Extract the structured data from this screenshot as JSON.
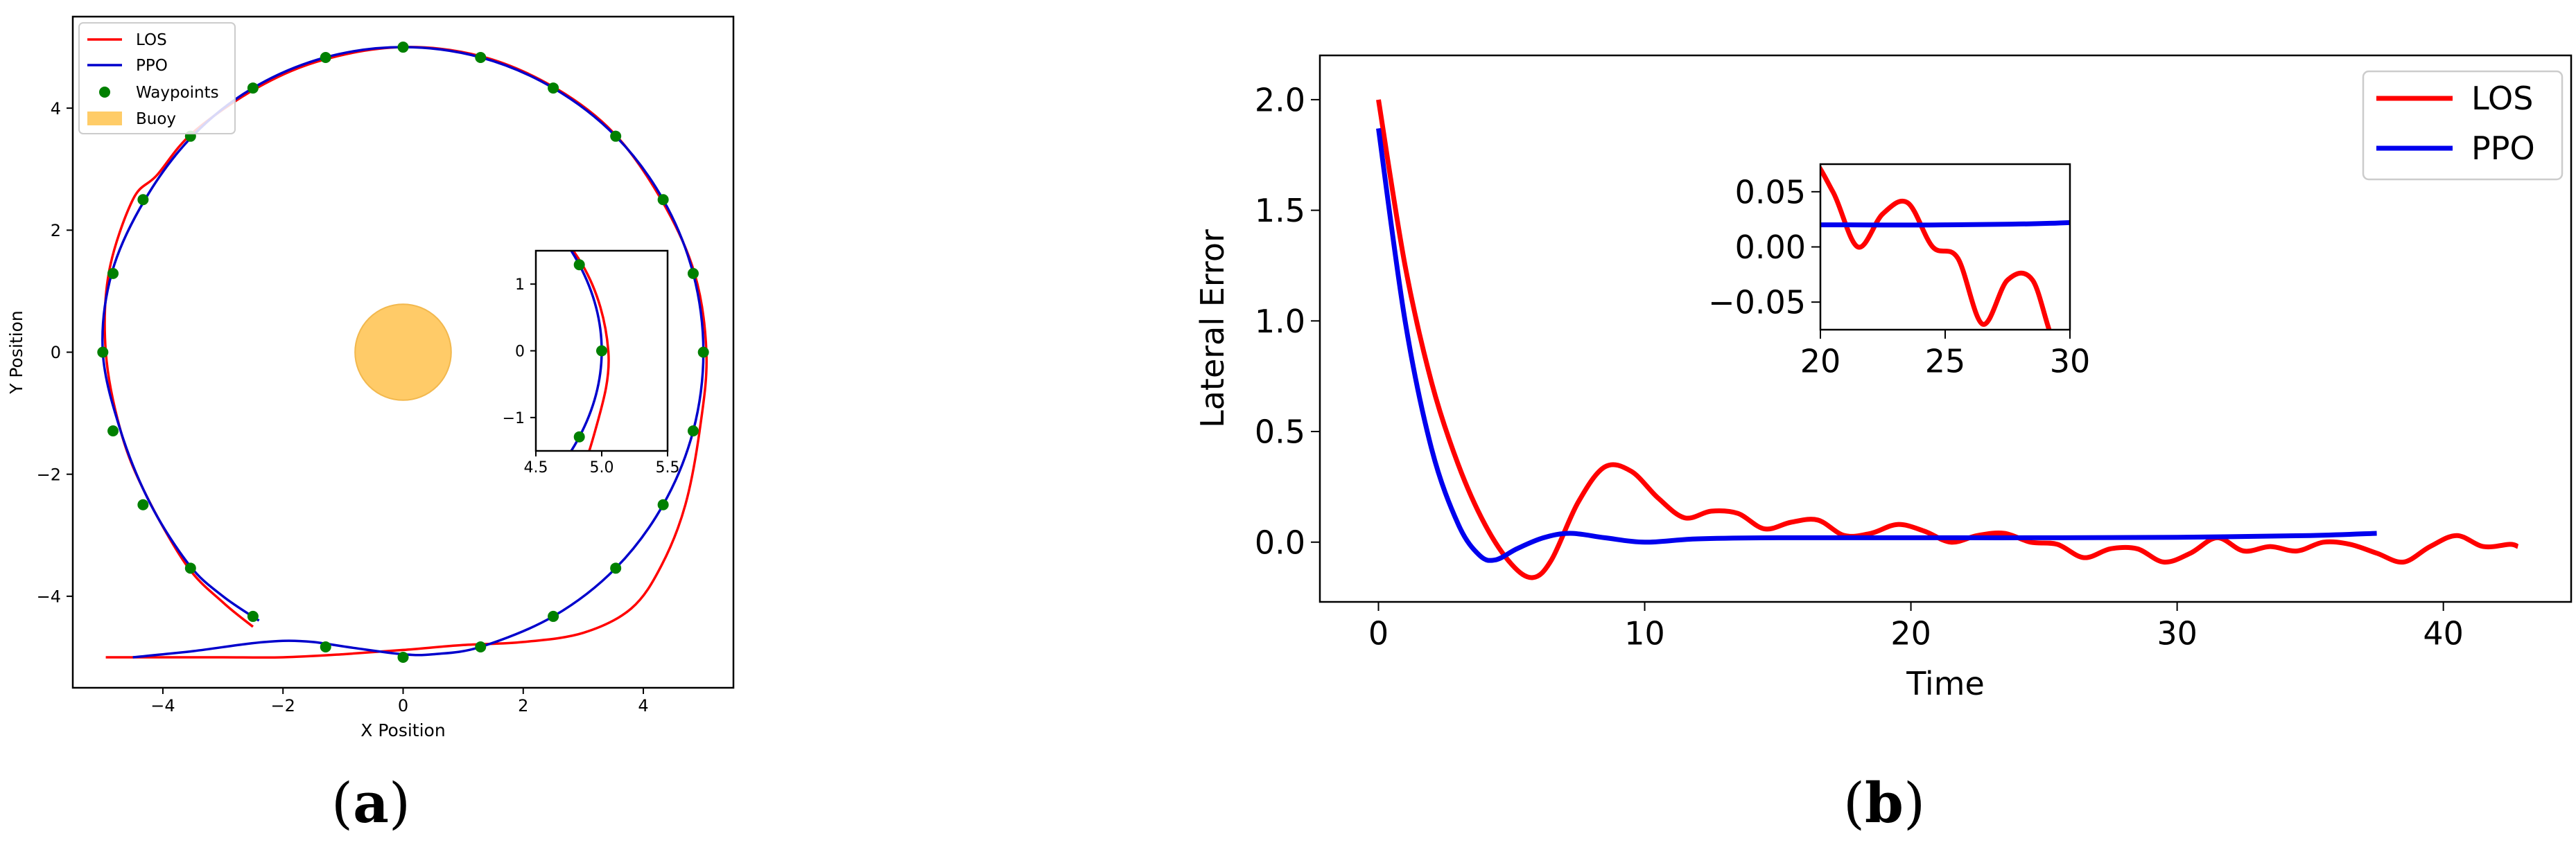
{
  "chart_data": [
    {
      "type": "scatter",
      "panel_label": "a",
      "title": "",
      "xlabel": "X Position",
      "ylabel": "Y Position",
      "xlim": [
        -5.5,
        5.5
      ],
      "ylim": [
        -5.5,
        5.5
      ],
      "xticks": [
        -4,
        -2,
        0,
        2,
        4
      ],
      "yticks": [
        -4,
        -2,
        0,
        2,
        4
      ],
      "grid": false,
      "legend": {
        "location": "upper-left",
        "entries": [
          "LOS",
          "PPO",
          "Waypoints",
          "Buoy"
        ]
      },
      "colors": {
        "LOS": "#ff0000",
        "PPO": "#0000cc",
        "Waypoints": "#008000",
        "Buoy": "#ffc658"
      },
      "waypoints": {
        "name": "Waypoints",
        "x": [
          0,
          1.29,
          2.5,
          3.54,
          4.33,
          4.83,
          5.0,
          4.83,
          4.33,
          3.54,
          2.5,
          1.29,
          0,
          -1.29,
          -2.5,
          -3.54,
          -4.33,
          -4.83,
          -5.0,
          -4.83,
          -4.33,
          -3.54,
          -2.5,
          -1.29
        ],
        "y": [
          5.0,
          4.83,
          4.33,
          3.54,
          2.5,
          1.29,
          0,
          -1.29,
          -2.5,
          -3.54,
          -4.33,
          -4.83,
          -5.0,
          -4.83,
          -4.33,
          -3.54,
          -2.5,
          -1.29,
          0,
          1.29,
          2.5,
          3.54,
          4.33,
          4.83
        ]
      },
      "buoy": {
        "name": "Buoy",
        "center": [
          0,
          0
        ],
        "radius": 0.8
      },
      "series": [
        {
          "name": "LOS",
          "x": [
            -2.5,
            -3.0,
            -3.6,
            -4.3,
            -4.7,
            -4.95,
            -4.9,
            -4.5,
            -4.1,
            -3.5,
            -2.4,
            -1.3,
            0,
            1.3,
            2.5,
            3.5,
            4.3,
            4.85,
            5.05,
            4.95,
            4.7,
            4.3,
            3.8,
            3.0,
            2.0,
            1.0,
            0,
            -1.0,
            -2.0,
            -3.0,
            -4.0,
            -4.95
          ],
          "y": [
            -4.5,
            -4.1,
            -3.5,
            -2.3,
            -1.3,
            0,
            1.3,
            2.5,
            2.9,
            3.6,
            4.35,
            4.8,
            5.0,
            4.85,
            4.35,
            3.6,
            2.5,
            1.3,
            0,
            -1.2,
            -2.5,
            -3.5,
            -4.2,
            -4.6,
            -4.75,
            -4.8,
            -4.88,
            -4.95,
            -5.0,
            -5.0,
            -5.0,
            -5.0
          ]
        },
        {
          "name": "PPO",
          "x": [
            -2.4,
            -3.0,
            -3.55,
            -4.2,
            -4.7,
            -5.0,
            -4.85,
            -4.3,
            -3.5,
            -2.5,
            -1.3,
            0,
            1.3,
            2.5,
            3.54,
            4.33,
            4.83,
            5.0,
            4.83,
            4.33,
            3.54,
            2.5,
            1.29,
            0.5,
            0,
            -0.8,
            -1.5,
            -2.0,
            -2.6,
            -3.5,
            -4.5
          ],
          "y": [
            -4.4,
            -4.0,
            -3.5,
            -2.5,
            -1.3,
            0,
            1.3,
            2.5,
            3.55,
            4.33,
            4.83,
            5.0,
            4.83,
            4.33,
            3.54,
            2.5,
            1.29,
            0,
            -1.29,
            -2.5,
            -3.54,
            -4.33,
            -4.83,
            -4.95,
            -4.95,
            -4.85,
            -4.75,
            -4.73,
            -4.78,
            -4.9,
            -5.0
          ]
        }
      ],
      "inset": {
        "xlim": [
          4.5,
          5.5
        ],
        "ylim": [
          -1.5,
          1.5
        ],
        "xticks": [
          4.5,
          5.0,
          5.5
        ],
        "yticks": [
          -1,
          0,
          1
        ],
        "xtick_labels": [
          "4.5",
          "5.0",
          "5.5"
        ],
        "ytick_labels": [
          "−1",
          "0",
          "1"
        ]
      }
    },
    {
      "type": "line",
      "panel_label": "b",
      "title": "",
      "xlabel": "Time",
      "ylabel": "Lateral Error",
      "xlim": [
        -2.2,
        44.8
      ],
      "ylim": [
        -0.27,
        2.2
      ],
      "xticks": [
        0,
        10,
        20,
        30,
        40
      ],
      "yticks": [
        0.0,
        0.5,
        1.0,
        1.5,
        2.0
      ],
      "ytick_labels": [
        "0.0",
        "0.5",
        "1.0",
        "1.5",
        "2.0"
      ],
      "grid": false,
      "legend": {
        "location": "upper-right",
        "entries": [
          "LOS",
          "PPO"
        ]
      },
      "colors": {
        "LOS": "#ff0000",
        "PPO": "#0000ee"
      },
      "series": [
        {
          "name": "LOS",
          "x": [
            0,
            1,
            2,
            3,
            4,
            5,
            5.8,
            6.5,
            7.5,
            8.5,
            9.5,
            10.5,
            11.5,
            12.5,
            13.5,
            14.5,
            15.5,
            16.5,
            17.5,
            18.5,
            19.5,
            20.5,
            21.5,
            22.5,
            23.5,
            24.5,
            25.5,
            26.5,
            27.5,
            28.5,
            29.5,
            30.5,
            31.5,
            32.5,
            33.5,
            34.5,
            35.5,
            36.5,
            37.5,
            38.5,
            39.5,
            40.5,
            41.5,
            42.5,
            42.8
          ],
          "y": [
            2.0,
            1.25,
            0.72,
            0.35,
            0.08,
            -0.1,
            -0.16,
            -0.08,
            0.18,
            0.34,
            0.32,
            0.2,
            0.11,
            0.14,
            0.13,
            0.06,
            0.09,
            0.1,
            0.03,
            0.04,
            0.08,
            0.05,
            0.0,
            0.03,
            0.04,
            0.0,
            -0.01,
            -0.07,
            -0.03,
            -0.03,
            -0.09,
            -0.05,
            0.02,
            -0.04,
            -0.02,
            -0.04,
            0.0,
            -0.01,
            -0.05,
            -0.09,
            -0.02,
            0.03,
            -0.02,
            -0.01,
            -0.02
          ]
        },
        {
          "name": "PPO",
          "x": [
            0,
            1,
            2,
            3,
            3.8,
            4.4,
            5.2,
            6.2,
            7.2,
            8.5,
            10,
            12,
            15,
            20,
            25,
            30,
            35,
            37.5
          ],
          "y": [
            1.87,
            1.0,
            0.42,
            0.08,
            -0.06,
            -0.08,
            -0.03,
            0.02,
            0.04,
            0.02,
            0.0,
            0.015,
            0.02,
            0.02,
            0.02,
            0.022,
            0.03,
            0.04
          ]
        }
      ],
      "inset": {
        "xlim": [
          20,
          30
        ],
        "ylim": [
          -0.075,
          0.075
        ],
        "xticks": [
          20,
          25,
          30
        ],
        "yticks": [
          0.05,
          0.0,
          -0.05
        ],
        "ytick_labels": [
          "0.05",
          "0.00",
          "−0.05"
        ]
      }
    }
  ],
  "captions": {
    "a": "(a)",
    "b": "(b)"
  }
}
